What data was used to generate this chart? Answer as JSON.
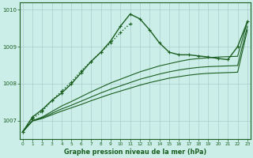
{
  "title": "Graphe pression niveau de la mer (hPa)",
  "background_color": "#cceee8",
  "grid_color": "#aacccc",
  "line_color": "#1a5e20",
  "x_values": [
    0,
    1,
    2,
    3,
    4,
    5,
    6,
    7,
    8,
    9,
    10,
    11,
    12,
    13,
    14,
    15,
    16,
    17,
    18,
    19,
    20,
    21,
    22,
    23
  ],
  "series": [
    {
      "y": [
        1006.7,
        1007.1,
        1007.3,
        1007.55,
        1007.75,
        1008.0,
        1008.3,
        1008.6,
        1008.85,
        1009.15,
        1009.55,
        1009.88,
        1009.75,
        1009.45,
        1009.1,
        1008.85,
        1008.78,
        1008.78,
        1008.75,
        1008.72,
        1008.68,
        1008.65,
        1009.0,
        1009.68
      ],
      "linestyle": "-",
      "marker": "+",
      "linewidth": 1.0,
      "markersize": 4.0
    },
    {
      "y": [
        1006.7,
        null,
        null,
        null,
        null,
        null,
        null,
        null,
        null,
        null,
        null,
        null,
        null,
        null,
        null,
        null,
        null,
        null,
        null,
        null,
        null,
        null,
        null,
        1009.68
      ],
      "linestyle": "-",
      "marker": null,
      "linewidth": 0.8,
      "markersize": 0
    },
    {
      "y": [
        1006.7,
        null,
        null,
        null,
        null,
        null,
        null,
        null,
        null,
        null,
        null,
        null,
        null,
        null,
        null,
        null,
        null,
        null,
        null,
        null,
        null,
        null,
        null,
        1009.55
      ],
      "linestyle": "-",
      "marker": null,
      "linewidth": 0.8,
      "markersize": 0
    },
    {
      "y": [
        1006.7,
        null,
        null,
        null,
        null,
        null,
        null,
        null,
        null,
        null,
        null,
        null,
        null,
        null,
        null,
        null,
        null,
        null,
        null,
        null,
        null,
        null,
        null,
        1009.45
      ],
      "linestyle": "-",
      "marker": null,
      "linewidth": 0.8,
      "markersize": 0
    }
  ],
  "series_main": [
    1006.7,
    1007.1,
    1007.3,
    1007.55,
    1007.75,
    1008.0,
    1008.3,
    1008.6,
    1008.85,
    1009.15,
    1009.55,
    1009.88,
    1009.75,
    1009.45,
    1009.1,
    1008.85,
    1008.78,
    1008.78,
    1008.75,
    1008.72,
    1008.68,
    1008.65,
    1009.0,
    1009.68
  ],
  "series_dotted": [
    1006.7,
    1007.05,
    1007.25,
    1007.55,
    1007.8,
    1008.05,
    1008.35,
    1008.6,
    1008.85,
    1009.1,
    1009.38,
    1009.62,
    null,
    null,
    null,
    null,
    null,
    null,
    null,
    null,
    null,
    null,
    null,
    null
  ],
  "series_linear1": [
    1006.7,
    1007.0,
    1007.1,
    1007.25,
    1007.4,
    1007.52,
    1007.65,
    1007.78,
    1007.9,
    1008.02,
    1008.12,
    1008.22,
    1008.32,
    1008.4,
    1008.48,
    1008.54,
    1008.6,
    1008.65,
    1008.68,
    1008.7,
    1008.72,
    1008.73,
    1008.74,
    1009.68
  ],
  "series_linear2": [
    1006.7,
    1007.0,
    1007.08,
    1007.2,
    1007.32,
    1007.42,
    1007.53,
    1007.64,
    1007.75,
    1007.85,
    1007.94,
    1008.03,
    1008.12,
    1008.19,
    1008.26,
    1008.32,
    1008.37,
    1008.41,
    1008.44,
    1008.46,
    1008.47,
    1008.48,
    1008.49,
    1009.55
  ],
  "series_linear3": [
    1006.7,
    1006.99,
    1007.06,
    1007.16,
    1007.26,
    1007.35,
    1007.44,
    1007.54,
    1007.63,
    1007.72,
    1007.8,
    1007.88,
    1007.96,
    1008.03,
    1008.09,
    1008.15,
    1008.19,
    1008.23,
    1008.26,
    1008.28,
    1008.29,
    1008.3,
    1008.31,
    1009.45
  ],
  "ylim": [
    1006.5,
    1010.2
  ],
  "yticks": [
    1007,
    1008,
    1009,
    1010
  ],
  "xlim": [
    -0.3,
    23.3
  ]
}
